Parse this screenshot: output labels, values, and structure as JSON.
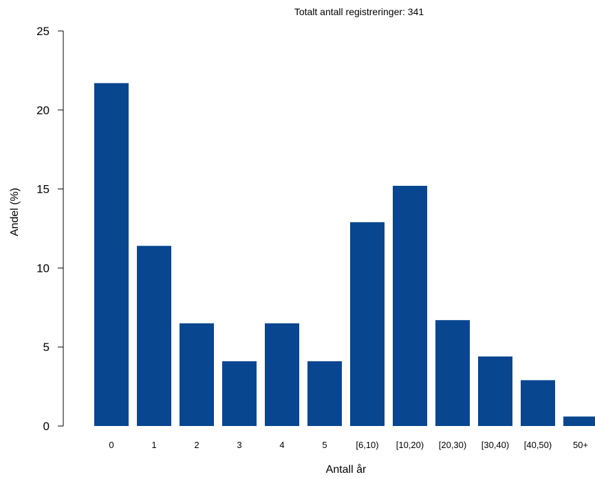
{
  "chart_data": {
    "type": "bar",
    "title": "",
    "subtitle": "Totalt antall registreringer: 341",
    "xlabel": "Antall år",
    "ylabel": "Andel (%)",
    "categories": [
      "0",
      "1",
      "2",
      "3",
      "4",
      "5",
      "[6,10)",
      "[10,20)",
      "[20,30)",
      "[30,40)",
      "[40,50)",
      "50+"
    ],
    "values": [
      21.7,
      11.4,
      6.5,
      4.1,
      6.5,
      4.1,
      12.9,
      15.2,
      6.7,
      4.4,
      2.9,
      0.6
    ],
    "ylim": [
      0,
      25
    ],
    "yticks": [
      0,
      5,
      10,
      15,
      20,
      25
    ],
    "grid": false,
    "legend": "none",
    "bar_color": "#08468f"
  }
}
